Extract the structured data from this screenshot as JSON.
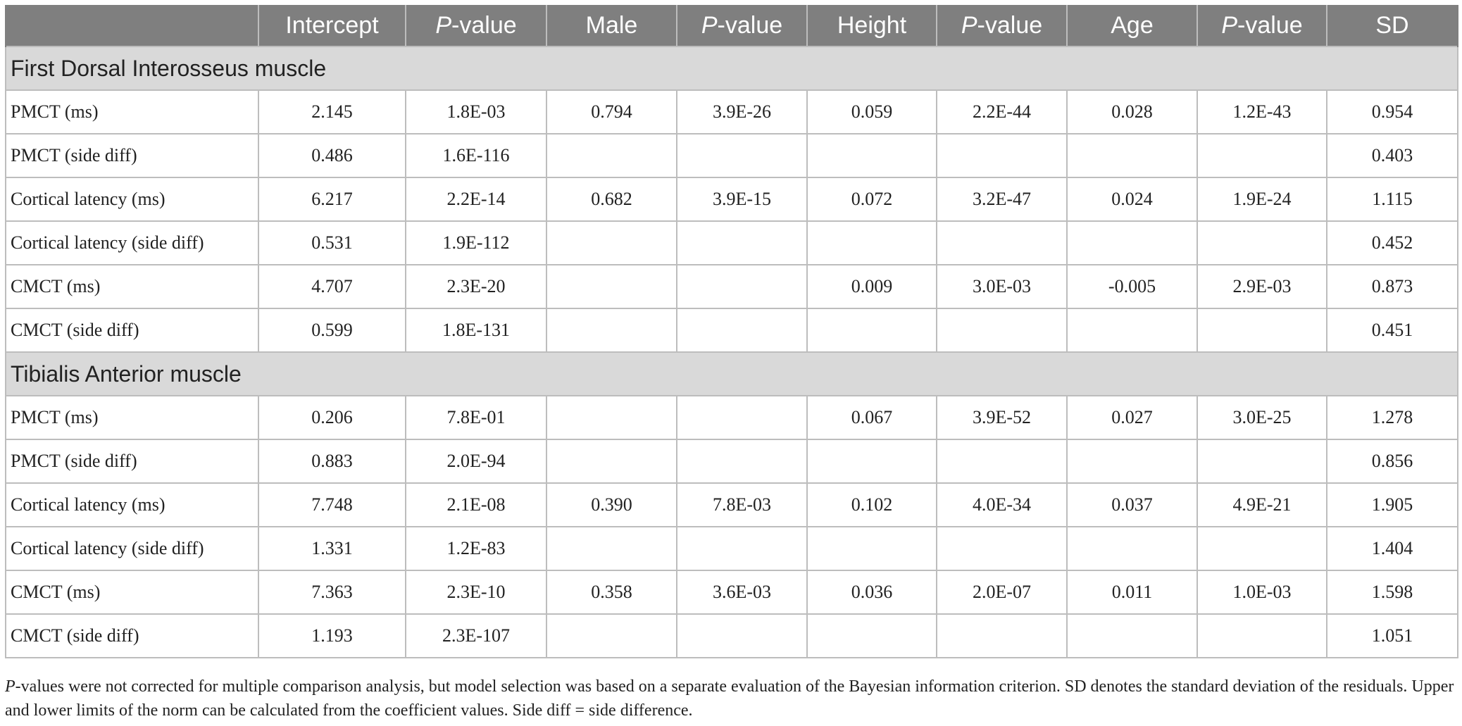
{
  "header": {
    "empty": "",
    "intercept": "Intercept",
    "p_italic": "P",
    "p_suffix": "-value",
    "male": "Male",
    "height": "Height",
    "age": "Age",
    "sd": "SD"
  },
  "sections": [
    {
      "title": "First Dorsal Interosseus muscle",
      "rows": [
        [
          "PMCT (ms)",
          "2.145",
          "1.8E-03",
          "0.794",
          "3.9E-26",
          "0.059",
          "2.2E-44",
          "0.028",
          "1.2E-43",
          "0.954"
        ],
        [
          "PMCT (side diff)",
          "0.486",
          "1.6E-116",
          "",
          "",
          "",
          "",
          "",
          "",
          "0.403"
        ],
        [
          "Cortical latency (ms)",
          "6.217",
          "2.2E-14",
          "0.682",
          "3.9E-15",
          "0.072",
          "3.2E-47",
          "0.024",
          "1.9E-24",
          "1.115"
        ],
        [
          "Cortical latency (side diff)",
          "0.531",
          "1.9E-112",
          "",
          "",
          "",
          "",
          "",
          "",
          "0.452"
        ],
        [
          "CMCT (ms)",
          "4.707",
          "2.3E-20",
          "",
          "",
          "0.009",
          "3.0E-03",
          "-0.005",
          "2.9E-03",
          "0.873"
        ],
        [
          "CMCT (side diff)",
          "0.599",
          "1.8E-131",
          "",
          "",
          "",
          "",
          "",
          "",
          "0.451"
        ]
      ]
    },
    {
      "title": "Tibialis Anterior muscle",
      "rows": [
        [
          "PMCT (ms)",
          "0.206",
          "7.8E-01",
          "",
          "",
          "0.067",
          "3.9E-52",
          "0.027",
          "3.0E-25",
          "1.278"
        ],
        [
          "PMCT (side diff)",
          "0.883",
          "2.0E-94",
          "",
          "",
          "",
          "",
          "",
          "",
          "0.856"
        ],
        [
          "Cortical latency (ms)",
          "7.748",
          "2.1E-08",
          "0.390",
          "7.8E-03",
          "0.102",
          "4.0E-34",
          "0.037",
          "4.9E-21",
          "1.905"
        ],
        [
          "Cortical latency (side diff)",
          "1.331",
          "1.2E-83",
          "",
          "",
          "",
          "",
          "",
          "",
          "1.404"
        ],
        [
          "CMCT (ms)",
          "7.363",
          "2.3E-10",
          "0.358",
          "3.6E-03",
          "0.036",
          "2.0E-07",
          "0.011",
          "1.0E-03",
          "1.598"
        ],
        [
          "CMCT (side diff)",
          "1.193",
          "2.3E-107",
          "",
          "",
          "",
          "",
          "",
          "",
          "1.051"
        ]
      ]
    }
  ],
  "footnote": {
    "p_italic": "P",
    "text": "-values were not corrected for multiple comparison analysis, but model selection was based on a separate evaluation of the Bayesian information criterion. SD denotes the standard deviation of the residuals. Upper and lower limits of the norm can be calculated from the coefficient values. Side diff = side difference."
  }
}
